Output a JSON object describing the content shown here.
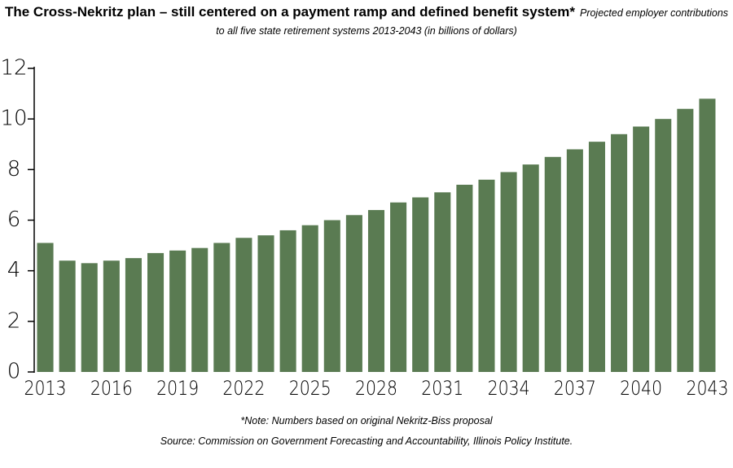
{
  "chart_data": {
    "type": "bar",
    "title": "The Cross-Nekritz plan – still centered on a payment ramp and defined benefit system*",
    "subtitle": "Projected employer contributions to all five state retirement systems 2013-2043 (in billions of dollars)",
    "note": "*Note: Numbers based on original Nekritz-Biss proposal",
    "source": "Source: Commission on Government Forecasting and Accountability, Illinois Policy Institute.",
    "categories": [
      "2013",
      null,
      null,
      "2016",
      null,
      null,
      "2019",
      null,
      null,
      "2022",
      null,
      null,
      "2025",
      null,
      null,
      "2028",
      null,
      null,
      "2031",
      null,
      null,
      "2034",
      null,
      null,
      "2037",
      null,
      null,
      "2040",
      null,
      null,
      "2043"
    ],
    "values": [
      5.1,
      4.4,
      4.3,
      4.4,
      4.5,
      4.7,
      4.8,
      4.9,
      5.1,
      5.3,
      5.4,
      5.6,
      5.8,
      6.0,
      6.2,
      6.4,
      6.7,
      6.9,
      7.1,
      7.4,
      7.6,
      7.9,
      8.2,
      8.5,
      8.8,
      9.1,
      9.4,
      9.7,
      10.0,
      10.4,
      10.8
    ],
    "color": "#5a7b52",
    "ylim": [
      0,
      12
    ],
    "yticks": [
      0,
      2,
      4,
      6,
      8,
      10,
      12
    ],
    "grid": false
  }
}
